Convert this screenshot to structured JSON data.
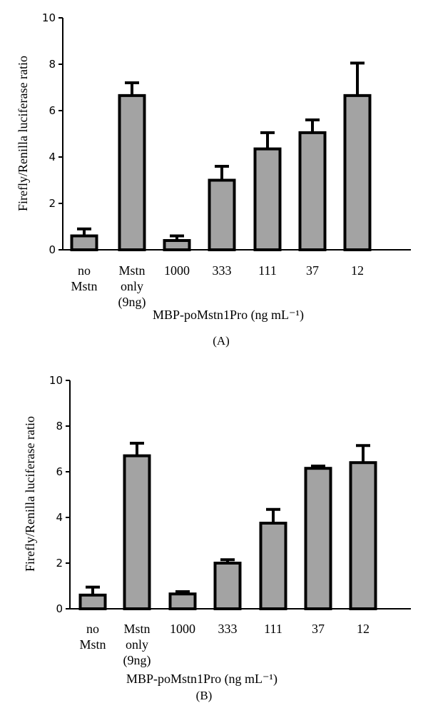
{
  "chart_data": [
    {
      "type": "bar",
      "panel_label": "(A)",
      "ylabel": "Firefly/Renilla luciferase ratio",
      "xlabel": "MBP-poMstn1Pro (ng mL⁻¹)",
      "ylim": [
        0,
        10
      ],
      "yticks": [
        0,
        2,
        4,
        6,
        8,
        10
      ],
      "categories": [
        [
          "no",
          "Mstn"
        ],
        [
          "Mstn",
          "only",
          "(9ng)"
        ],
        [
          "1000"
        ],
        [
          "333"
        ],
        [
          "111"
        ],
        [
          "37"
        ],
        [
          "12"
        ]
      ],
      "values": [
        0.6,
        6.65,
        0.4,
        3.0,
        4.35,
        5.05,
        6.65
      ],
      "errors": [
        0.3,
        0.55,
        0.2,
        0.6,
        0.7,
        0.55,
        1.4
      ]
    },
    {
      "type": "bar",
      "panel_label": "(B)",
      "ylabel": "Firefly/Renilla luciferase ratio",
      "xlabel": "MBP-poMstn1Pro (ng mL⁻¹)",
      "ylim": [
        0,
        10
      ],
      "yticks": [
        0,
        2,
        4,
        6,
        8,
        10
      ],
      "categories": [
        [
          "no",
          "Mstn"
        ],
        [
          "Mstn",
          "only",
          "(9ng)"
        ],
        [
          "1000"
        ],
        [
          "333"
        ],
        [
          "111"
        ],
        [
          "37"
        ],
        [
          "12"
        ]
      ],
      "values": [
        0.6,
        6.7,
        0.65,
        2.0,
        3.75,
        6.15,
        6.4
      ],
      "errors": [
        0.35,
        0.55,
        0.1,
        0.15,
        0.6,
        0.1,
        0.75
      ]
    }
  ],
  "colors": {
    "bar_fill": "#a3a3a3",
    "bar_stroke": "#000000"
  }
}
